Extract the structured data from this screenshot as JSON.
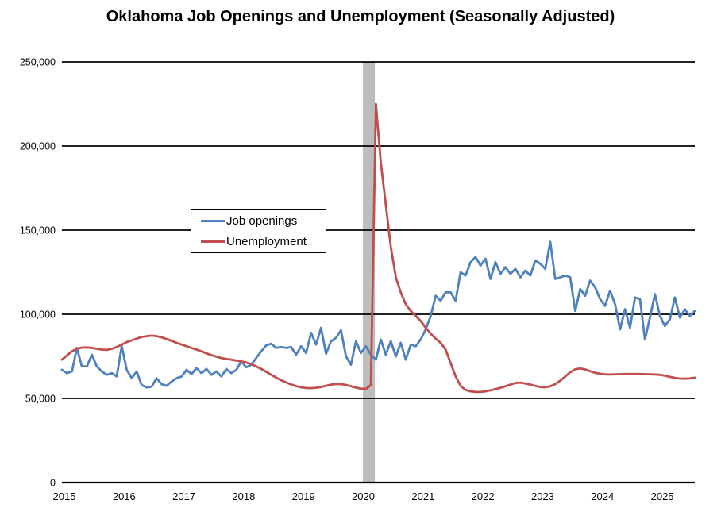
{
  "title": "Oklahoma Job Openings and Unemployment (Seasonally Adjusted)",
  "legend": {
    "items": [
      {
        "label": "Job openings",
        "color": "#4f81bd"
      },
      {
        "label": "Unemployment",
        "color": "#bf4e4c"
      }
    ]
  },
  "chart_data": {
    "type": "line",
    "title": "Oklahoma Job Openings and Unemployment (Seasonally Adjusted)",
    "xlabel": "",
    "ylabel": "",
    "x_unit": "month",
    "x_start": "2015-01",
    "x_end": "2025-08",
    "x_tick_labels": [
      "2015",
      "2016",
      "2017",
      "2018",
      "2019",
      "2020",
      "2021",
      "2022",
      "2023",
      "2024",
      "2025"
    ],
    "y_tick_labels": [
      "0",
      "50,000",
      "100,000",
      "150,000",
      "200,000",
      "250,000"
    ],
    "ylim": [
      0,
      250000
    ],
    "y_tick_step": 50000,
    "grid": "horizontal",
    "gridline_color": "#000000",
    "legend_position": "inside-upper-left",
    "recession_band": {
      "label": "2020 recession shading (Feb-Apr 2020)",
      "start_month_index": 60.4,
      "end_month_index": 62.8,
      "color": "#bdbdbd"
    },
    "series": [
      {
        "name": "Job openings",
        "color": "#4f81bd",
        "values": [
          67000,
          65000,
          66000,
          80000,
          69000,
          69000,
          76000,
          69000,
          66000,
          64000,
          65000,
          63000,
          81000,
          67000,
          62000,
          66000,
          58000,
          56500,
          57000,
          62000,
          58500,
          57500,
          60000,
          62000,
          63000,
          67000,
          64500,
          68000,
          65000,
          67500,
          64000,
          66000,
          63000,
          67500,
          65000,
          67000,
          72000,
          68500,
          70000,
          74000,
          78000,
          81500,
          82500,
          80000,
          80500,
          80000,
          80500,
          76000,
          81000,
          77000,
          89000,
          82000,
          92000,
          76500,
          84000,
          86000,
          90500,
          75000,
          70000,
          84000,
          77000,
          81000,
          76000,
          73000,
          85000,
          76000,
          84000,
          75000,
          83000,
          73000,
          82000,
          81000,
          85000,
          91000,
          99000,
          111000,
          108000,
          113000,
          113000,
          108000,
          125000,
          123000,
          131000,
          134000,
          129000,
          133000,
          121000,
          131000,
          124000,
          128000,
          124000,
          127000,
          122000,
          126000,
          123000,
          132000,
          130000,
          127000,
          143000,
          121000,
          122000,
          123000,
          122000,
          102000,
          115000,
          111000,
          120000,
          116000,
          109000,
          105000,
          114000,
          106000,
          91000,
          103000,
          92000,
          110000,
          109000,
          85000,
          98000,
          112000,
          99000,
          93000,
          97000,
          110000,
          98000,
          103000,
          99000,
          102000
        ]
      },
      {
        "name": "Unemployment",
        "color": "#bf4e4c",
        "values": [
          73000,
          75500,
          78000,
          79500,
          80200,
          80300,
          80000,
          79500,
          79000,
          78800,
          79500,
          80500,
          82000,
          83500,
          84500,
          85500,
          86500,
          87000,
          87300,
          87000,
          86300,
          85300,
          84200,
          83000,
          82000,
          81000,
          80000,
          79000,
          78000,
          76800,
          75700,
          74800,
          74000,
          73400,
          73000,
          72500,
          72000,
          71300,
          70300,
          69000,
          67500,
          65800,
          64000,
          62300,
          60800,
          59500,
          58300,
          57300,
          56600,
          56200,
          56100,
          56300,
          56800,
          57500,
          58200,
          58600,
          58500,
          58000,
          57200,
          56400,
          55800,
          55600,
          58000,
          225000,
          190000,
          165000,
          140000,
          122000,
          113000,
          106000,
          102000,
          99000,
          96000,
          92000,
          88500,
          85500,
          83000,
          79000,
          71000,
          63000,
          57500,
          55000,
          54200,
          53800,
          53800,
          54200,
          54800,
          55500,
          56300,
          57200,
          58200,
          59200,
          59400,
          58800,
          58200,
          57400,
          56800,
          56600,
          57200,
          58500,
          60500,
          63000,
          65500,
          67300,
          67800,
          67200,
          66200,
          65200,
          64600,
          64300,
          64200,
          64300,
          64400,
          64500,
          64500,
          64500,
          64500,
          64400,
          64300,
          64200,
          64000,
          63500,
          62800,
          62200,
          61800,
          61700,
          61900,
          62300
        ]
      }
    ]
  }
}
